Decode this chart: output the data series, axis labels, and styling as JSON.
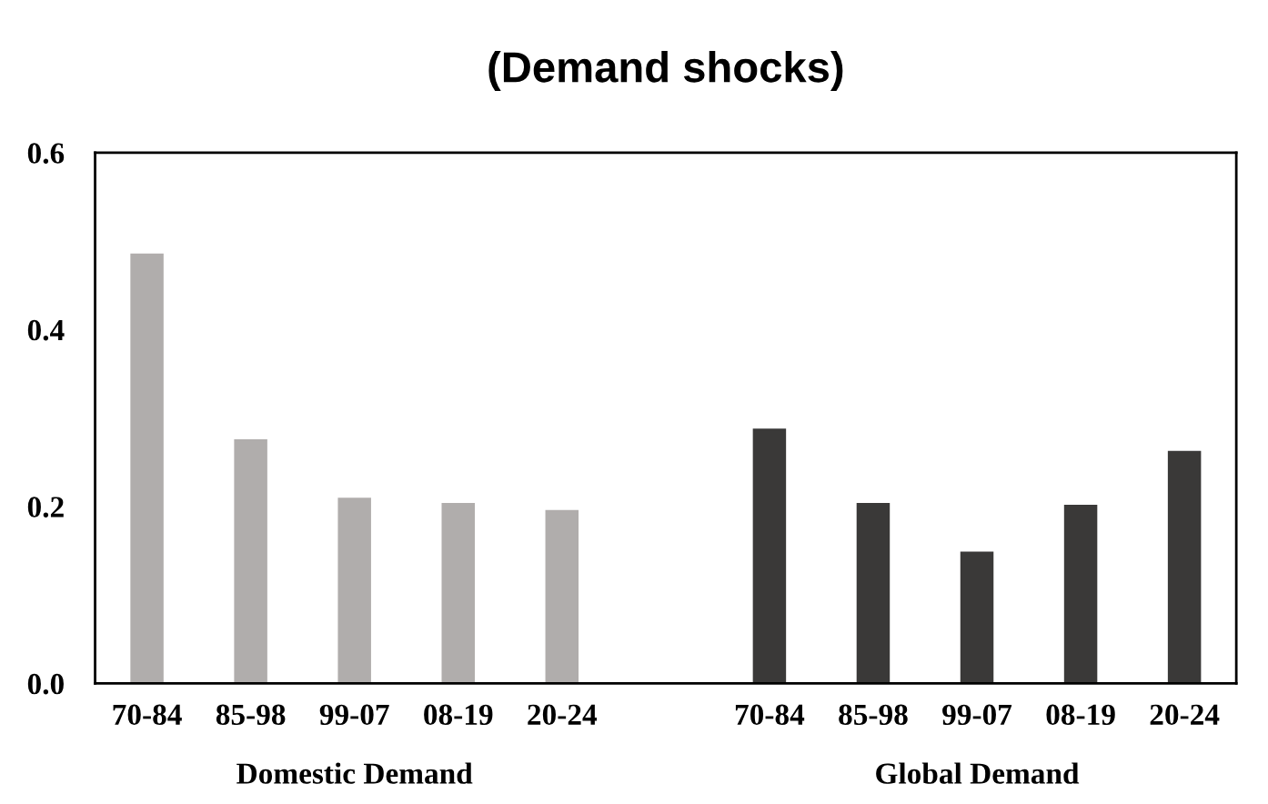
{
  "chart_data": {
    "type": "bar",
    "title": "(Demand shocks)",
    "categories": [
      "70-84",
      "85-98",
      "99-07",
      "08-19",
      "20-24",
      null,
      "70-84",
      "85-98",
      "99-07",
      "08-19",
      "20-24"
    ],
    "series": [
      {
        "name": "Domestic Demand",
        "color": "#b0adac",
        "values": [
          0.486,
          0.276,
          0.21,
          0.204,
          0.196,
          null,
          null,
          null,
          null,
          null,
          null
        ]
      },
      {
        "name": "Global Demand",
        "color": "#3a3938",
        "values": [
          null,
          null,
          null,
          null,
          null,
          null,
          0.288,
          0.204,
          0.149,
          0.202,
          0.263
        ]
      }
    ],
    "ylim": [
      0,
      0.6
    ],
    "yticks": [
      "0.0",
      0.2,
      0.4,
      0.6
    ],
    "grid": false,
    "legend": false
  }
}
